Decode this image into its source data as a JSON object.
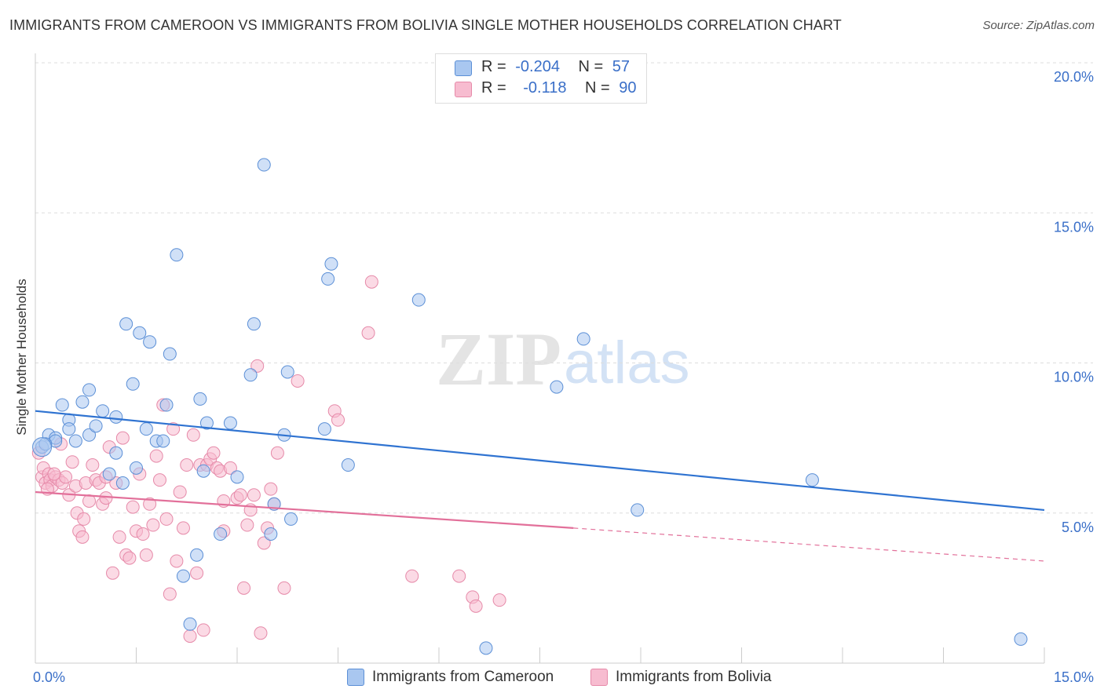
{
  "title": "IMMIGRANTS FROM CAMEROON VS IMMIGRANTS FROM BOLIVIA SINGLE MOTHER HOUSEHOLDS CORRELATION CHART",
  "source": "Source: ZipAtlas.com",
  "watermark": {
    "zip": "ZIP",
    "atlas": "atlas"
  },
  "legend": {
    "rows": [
      {
        "r_label": "R =",
        "r_value": "-0.204",
        "n_label": "N =",
        "n_value": "57"
      },
      {
        "r_label": "R =",
        "r_value": "-0.118",
        "n_label": "N =",
        "n_value": "90"
      }
    ]
  },
  "colors": {
    "cameroon_fill": "#a9c7f0",
    "cameroon_stroke": "#5b8fd6",
    "cameroon_line": "#2f73d1",
    "bolivia_fill": "#f7bcd0",
    "bolivia_stroke": "#e68aa9",
    "bolivia_line": "#e2709a",
    "tick_label": "#3a6fc8",
    "grid": "#dddddd"
  },
  "chart_data": {
    "type": "scatter",
    "title": "IMMIGRANTS FROM CAMEROON VS IMMIGRANTS FROM BOLIVIA SINGLE MOTHER HOUSEHOLDS CORRELATION CHART",
    "xlabel": "",
    "ylabel": "Single Mother Households",
    "xlim": [
      0,
      15
    ],
    "ylim": [
      0,
      20
    ],
    "x_tick_labels": [
      "0.0%",
      "15.0%"
    ],
    "y_ticks": [
      5,
      10,
      15,
      20
    ],
    "y_tick_labels": [
      "5.0%",
      "10.0%",
      "15.0%",
      "20.0%"
    ],
    "grid": "horizontal dashed",
    "legend_position": "bottom",
    "series": [
      {
        "name": "Immigrants from Cameroon",
        "color": "#5b8fd6",
        "r": -0.204,
        "n": 57,
        "trend": {
          "x": [
            0,
            15
          ],
          "y": [
            8.4,
            5.1
          ]
        },
        "points": [
          [
            0.1,
            7.2
          ],
          [
            0.2,
            7.6
          ],
          [
            0.3,
            7.5
          ],
          [
            0.3,
            7.4
          ],
          [
            0.4,
            8.6
          ],
          [
            0.5,
            8.1
          ],
          [
            0.5,
            7.8
          ],
          [
            0.6,
            7.4
          ],
          [
            0.7,
            8.7
          ],
          [
            0.8,
            7.6
          ],
          [
            0.8,
            9.1
          ],
          [
            0.9,
            7.9
          ],
          [
            1.0,
            8.4
          ],
          [
            1.1,
            6.3
          ],
          [
            1.2,
            8.2
          ],
          [
            1.2,
            7.0
          ],
          [
            1.3,
            6.0
          ],
          [
            1.35,
            11.3
          ],
          [
            1.45,
            9.3
          ],
          [
            1.5,
            6.5
          ],
          [
            1.55,
            11.0
          ],
          [
            1.65,
            7.8
          ],
          [
            1.7,
            10.7
          ],
          [
            1.8,
            7.4
          ],
          [
            1.9,
            7.4
          ],
          [
            1.95,
            8.6
          ],
          [
            2.0,
            10.3
          ],
          [
            2.1,
            13.6
          ],
          [
            2.2,
            2.9
          ],
          [
            2.3,
            1.3
          ],
          [
            2.4,
            3.6
          ],
          [
            2.45,
            8.8
          ],
          [
            2.5,
            6.4
          ],
          [
            2.55,
            8.0
          ],
          [
            2.75,
            4.3
          ],
          [
            2.9,
            8.0
          ],
          [
            3.0,
            6.2
          ],
          [
            3.2,
            9.6
          ],
          [
            3.25,
            11.3
          ],
          [
            3.4,
            16.6
          ],
          [
            3.5,
            4.3
          ],
          [
            3.55,
            5.3
          ],
          [
            3.7,
            7.6
          ],
          [
            3.75,
            9.7
          ],
          [
            3.8,
            4.8
          ],
          [
            4.3,
            7.8
          ],
          [
            4.35,
            12.8
          ],
          [
            4.4,
            13.3
          ],
          [
            4.65,
            6.6
          ],
          [
            5.7,
            12.1
          ],
          [
            6.7,
            0.5
          ],
          [
            7.75,
            9.2
          ],
          [
            8.15,
            10.8
          ],
          [
            8.95,
            5.1
          ],
          [
            11.55,
            6.1
          ],
          [
            14.65,
            0.8
          ],
          [
            0.15,
            7.3
          ]
        ]
      },
      {
        "name": "Immigrants from Bolivia",
        "color": "#e68aa9",
        "r": -0.118,
        "n": 90,
        "trend": {
          "x": [
            0,
            8.0
          ],
          "y": [
            5.7,
            4.5
          ]
        },
        "trend_dashed": {
          "x": [
            8.0,
            15
          ],
          "y": [
            4.5,
            3.4
          ]
        },
        "points": [
          [
            0.05,
            7.0
          ],
          [
            0.1,
            6.2
          ],
          [
            0.12,
            6.5
          ],
          [
            0.15,
            6.0
          ],
          [
            0.2,
            6.3
          ],
          [
            0.22,
            6.1
          ],
          [
            0.25,
            5.9
          ],
          [
            0.3,
            6.2
          ],
          [
            0.35,
            6.1
          ],
          [
            0.4,
            6.0
          ],
          [
            0.45,
            6.2
          ],
          [
            0.5,
            5.6
          ],
          [
            0.55,
            6.7
          ],
          [
            0.6,
            5.9
          ],
          [
            0.62,
            5.0
          ],
          [
            0.65,
            4.4
          ],
          [
            0.7,
            4.2
          ],
          [
            0.72,
            4.8
          ],
          [
            0.75,
            6.0
          ],
          [
            0.8,
            5.4
          ],
          [
            0.85,
            6.6
          ],
          [
            0.9,
            6.1
          ],
          [
            0.95,
            6.0
          ],
          [
            1.0,
            5.3
          ],
          [
            1.05,
            5.5
          ],
          [
            1.1,
            7.2
          ],
          [
            1.15,
            3.0
          ],
          [
            1.2,
            6.0
          ],
          [
            1.25,
            4.2
          ],
          [
            1.3,
            7.5
          ],
          [
            1.35,
            3.6
          ],
          [
            1.4,
            3.5
          ],
          [
            1.45,
            5.2
          ],
          [
            1.5,
            4.4
          ],
          [
            1.55,
            6.3
          ],
          [
            1.6,
            4.3
          ],
          [
            1.65,
            3.6
          ],
          [
            1.7,
            5.3
          ],
          [
            1.75,
            4.6
          ],
          [
            1.8,
            6.9
          ],
          [
            1.85,
            6.1
          ],
          [
            1.9,
            8.6
          ],
          [
            1.95,
            4.8
          ],
          [
            2.0,
            2.3
          ],
          [
            2.05,
            7.8
          ],
          [
            2.1,
            3.4
          ],
          [
            2.15,
            5.7
          ],
          [
            2.2,
            4.5
          ],
          [
            2.25,
            6.6
          ],
          [
            2.3,
            0.9
          ],
          [
            2.35,
            7.6
          ],
          [
            2.4,
            3.0
          ],
          [
            2.45,
            6.6
          ],
          [
            2.5,
            1.1
          ],
          [
            2.55,
            6.6
          ],
          [
            2.6,
            6.8
          ],
          [
            2.65,
            7.0
          ],
          [
            2.7,
            6.5
          ],
          [
            2.75,
            6.4
          ],
          [
            2.8,
            4.4
          ],
          [
            2.9,
            6.5
          ],
          [
            3.0,
            5.5
          ],
          [
            3.05,
            5.6
          ],
          [
            3.1,
            2.5
          ],
          [
            3.15,
            4.6
          ],
          [
            3.2,
            5.1
          ],
          [
            3.25,
            5.6
          ],
          [
            3.3,
            9.9
          ],
          [
            3.35,
            1.0
          ],
          [
            3.4,
            4.0
          ],
          [
            3.45,
            4.5
          ],
          [
            3.5,
            5.8
          ],
          [
            3.55,
            5.3
          ],
          [
            3.6,
            7.0
          ],
          [
            3.7,
            2.5
          ],
          [
            3.9,
            9.4
          ],
          [
            4.45,
            8.4
          ],
          [
            4.5,
            8.1
          ],
          [
            4.95,
            11.0
          ],
          [
            5.0,
            12.7
          ],
          [
            5.6,
            2.9
          ],
          [
            6.3,
            2.9
          ],
          [
            6.5,
            2.2
          ],
          [
            6.55,
            1.9
          ],
          [
            6.9,
            2.1
          ],
          [
            0.18,
            5.8
          ],
          [
            0.28,
            6.3
          ],
          [
            0.38,
            7.3
          ],
          [
            1.05,
            6.2
          ],
          [
            2.8,
            5.4
          ]
        ]
      }
    ]
  }
}
